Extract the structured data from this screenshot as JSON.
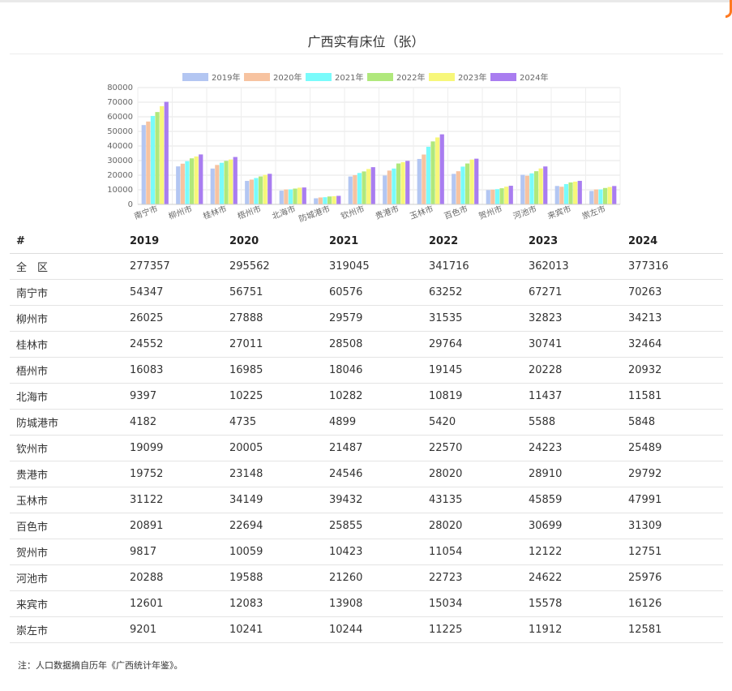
{
  "page": {
    "title": "广西实有床位（张）",
    "note": "注：人口数据摘自历年《广西统计年鉴》。"
  },
  "table": {
    "headers": [
      "#",
      "2019",
      "2020",
      "2021",
      "2022",
      "2023",
      "2024"
    ],
    "rows": [
      [
        "全　区",
        "277357",
        "295562",
        "319045",
        "341716",
        "362013",
        "377316"
      ],
      [
        "南宁市",
        "54347",
        "56751",
        "60576",
        "63252",
        "67271",
        "70263"
      ],
      [
        "柳州市",
        "26025",
        "27888",
        "29579",
        "31535",
        "32823",
        "34213"
      ],
      [
        "桂林市",
        "24552",
        "27011",
        "28508",
        "29764",
        "30741",
        "32464"
      ],
      [
        "梧州市",
        "16083",
        "16985",
        "18046",
        "19145",
        "20228",
        "20932"
      ],
      [
        "北海市",
        "9397",
        "10225",
        "10282",
        "10819",
        "11437",
        "11581"
      ],
      [
        "防城港市",
        "4182",
        "4735",
        "4899",
        "5420",
        "5588",
        "5848"
      ],
      [
        "钦州市",
        "19099",
        "20005",
        "21487",
        "22570",
        "24223",
        "25489"
      ],
      [
        "贵港市",
        "19752",
        "23148",
        "24546",
        "28020",
        "28910",
        "29792"
      ],
      [
        "玉林市",
        "31122",
        "34149",
        "39432",
        "43135",
        "45859",
        "47991"
      ],
      [
        "百色市",
        "20891",
        "22694",
        "25855",
        "28020",
        "30699",
        "31309"
      ],
      [
        "贺州市",
        "9817",
        "10059",
        "10423",
        "11054",
        "12122",
        "12751"
      ],
      [
        "河池市",
        "20288",
        "19588",
        "21260",
        "22723",
        "24622",
        "25976"
      ],
      [
        "来宾市",
        "12601",
        "12083",
        "13908",
        "15034",
        "15578",
        "16126"
      ],
      [
        "崇左市",
        "9201",
        "10241",
        "10244",
        "11225",
        "11912",
        "12581"
      ]
    ]
  },
  "chart_data": {
    "type": "bar",
    "categories": [
      "南宁市",
      "柳州市",
      "桂林市",
      "梧州市",
      "北海市",
      "防城港市",
      "钦州市",
      "贵港市",
      "玉林市",
      "百色市",
      "贺州市",
      "河池市",
      "来宾市",
      "崇左市"
    ],
    "ylim": [
      0,
      80000
    ],
    "yticks": [
      "0",
      "10000",
      "20000",
      "30000",
      "40000",
      "50000",
      "60000",
      "70000",
      "80000"
    ],
    "grid": true,
    "legend_position": "top",
    "series": [
      {
        "name": "2019年",
        "color": "#b3c6f2",
        "values": [
          54347,
          26025,
          24552,
          16083,
          9397,
          4182,
          19099,
          19752,
          31122,
          20891,
          9817,
          20288,
          12601,
          9201
        ]
      },
      {
        "name": "2020年",
        "color": "#f7c3a0",
        "values": [
          56751,
          27888,
          27011,
          16985,
          10225,
          4735,
          20005,
          23148,
          34149,
          22694,
          10059,
          19588,
          12083,
          10241
        ]
      },
      {
        "name": "2021年",
        "color": "#79fbfb",
        "values": [
          60576,
          29579,
          28508,
          18046,
          10282,
          4899,
          21487,
          24546,
          39432,
          25855,
          10423,
          21260,
          13908,
          10244
        ]
      },
      {
        "name": "2022年",
        "color": "#b0e87c",
        "values": [
          63252,
          31535,
          29764,
          19145,
          10819,
          5420,
          22570,
          28020,
          43135,
          28020,
          11054,
          22723,
          15034,
          11225
        ]
      },
      {
        "name": "2023年",
        "color": "#f7f77a",
        "values": [
          67271,
          32823,
          30741,
          20228,
          11437,
          5588,
          24223,
          28910,
          45859,
          30699,
          12122,
          24622,
          15578,
          11912
        ]
      },
      {
        "name": "2024年",
        "color": "#a97df0",
        "values": [
          70263,
          34213,
          32464,
          20932,
          11581,
          5848,
          25489,
          29792,
          47991,
          31309,
          12751,
          25976,
          16126,
          12581
        ]
      }
    ]
  }
}
